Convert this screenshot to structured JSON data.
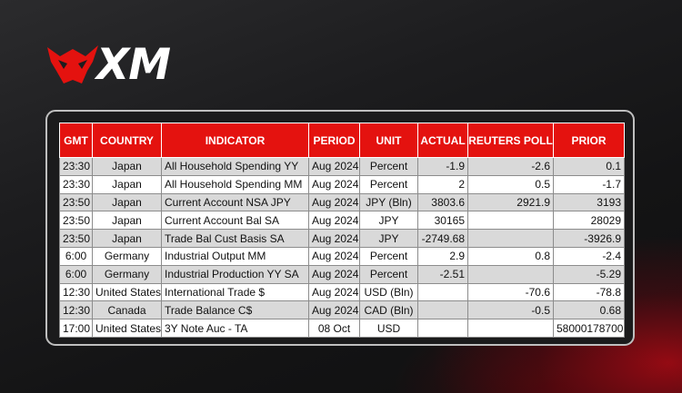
{
  "brand": {
    "logo_text": "XM"
  },
  "table": {
    "headers": [
      "GMT",
      "COUNTRY",
      "INDICATOR",
      "PERIOD",
      "UNIT",
      "ACTUAL",
      "REUTERS POLL",
      "PRIOR"
    ],
    "rows": [
      [
        "23:30",
        "Japan",
        "All Household Spending YY",
        "Aug 2024",
        "Percent",
        "-1.9",
        "-2.6",
        "0.1"
      ],
      [
        "23:30",
        "Japan",
        "All Household Spending MM",
        "Aug 2024",
        "Percent",
        "2",
        "0.5",
        "-1.7"
      ],
      [
        "23:50",
        "Japan",
        "Current Account NSA JPY",
        "Aug 2024",
        "JPY (Bln)",
        "3803.6",
        "2921.9",
        "3193"
      ],
      [
        "23:50",
        "Japan",
        "Current Account Bal SA",
        "Aug 2024",
        "JPY",
        "30165",
        "",
        "28029"
      ],
      [
        "23:50",
        "Japan",
        "Trade Bal Cust Basis SA",
        "Aug 2024",
        "JPY",
        "-2749.68",
        "",
        "-3926.9"
      ],
      [
        "6:00",
        "Germany",
        "Industrial Output MM",
        "Aug 2024",
        "Percent",
        "2.9",
        "0.8",
        "-2.4"
      ],
      [
        "6:00",
        "Germany",
        "Industrial Production YY SA",
        "Aug 2024",
        "Percent",
        "-2.51",
        "",
        "-5.29"
      ],
      [
        "12:30",
        "United States",
        "International Trade $",
        "Aug 2024",
        "USD (Bln)",
        "",
        "-70.6",
        "-78.8"
      ],
      [
        "12:30",
        "Canada",
        "Trade Balance C$",
        "Aug 2024",
        "CAD (Bln)",
        "",
        "-0.5",
        "0.68"
      ],
      [
        "17:00",
        "United States",
        "3Y Note Auc - TA",
        "08 Oct",
        "USD",
        "",
        "",
        "58000178700"
      ]
    ]
  }
}
